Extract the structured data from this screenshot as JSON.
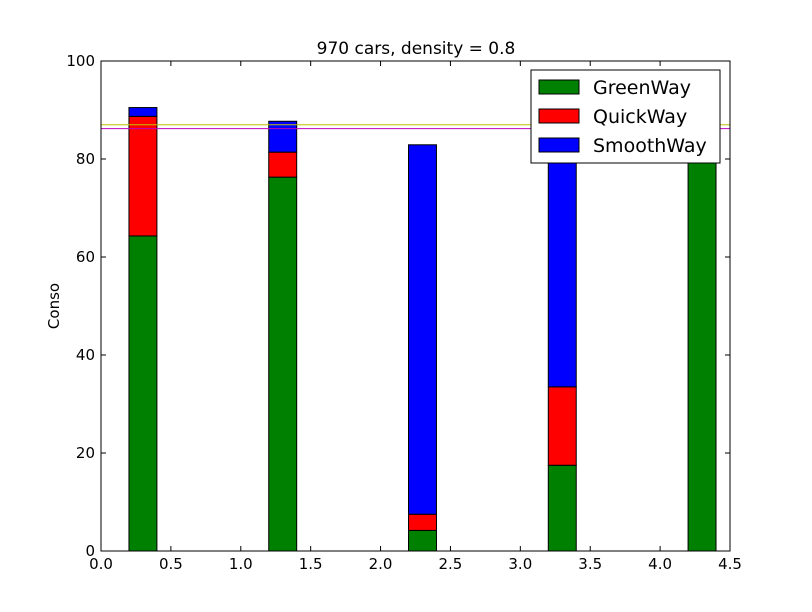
{
  "chart_data": {
    "type": "bar",
    "stacked": true,
    "title": "970 cars, density = 0.8",
    "xlabel": "",
    "ylabel": "Conso",
    "xlim": [
      0.0,
      4.5
    ],
    "ylim": [
      0,
      100
    ],
    "xticks": [
      "0.0",
      "0.5",
      "1.0",
      "1.5",
      "2.0",
      "2.5",
      "3.0",
      "3.5",
      "4.0",
      "4.5"
    ],
    "yticks": [
      "0",
      "20",
      "40",
      "60",
      "80",
      "100"
    ],
    "bar_left": [
      0.2,
      1.2,
      2.2,
      3.2,
      4.2
    ],
    "bar_width": 0.2,
    "series": [
      {
        "name": "GreenWay",
        "color": "#008000",
        "values": [
          64.3,
          76.3,
          4.2,
          17.5,
          87.0
        ]
      },
      {
        "name": "QuickWay",
        "color": "#ff0000",
        "values": [
          24.4,
          5.1,
          3.3,
          16.0,
          0
        ]
      },
      {
        "name": "SmoothWay",
        "color": "#0000ff",
        "values": [
          1.8,
          6.3,
          75.4,
          50.0,
          0
        ]
      }
    ],
    "hlines": [
      {
        "y": 87.0,
        "color": "#bfbf00"
      },
      {
        "y": 86.2,
        "color": "#bf00bf"
      }
    ],
    "legend_position": "top-right",
    "grid": false
  }
}
